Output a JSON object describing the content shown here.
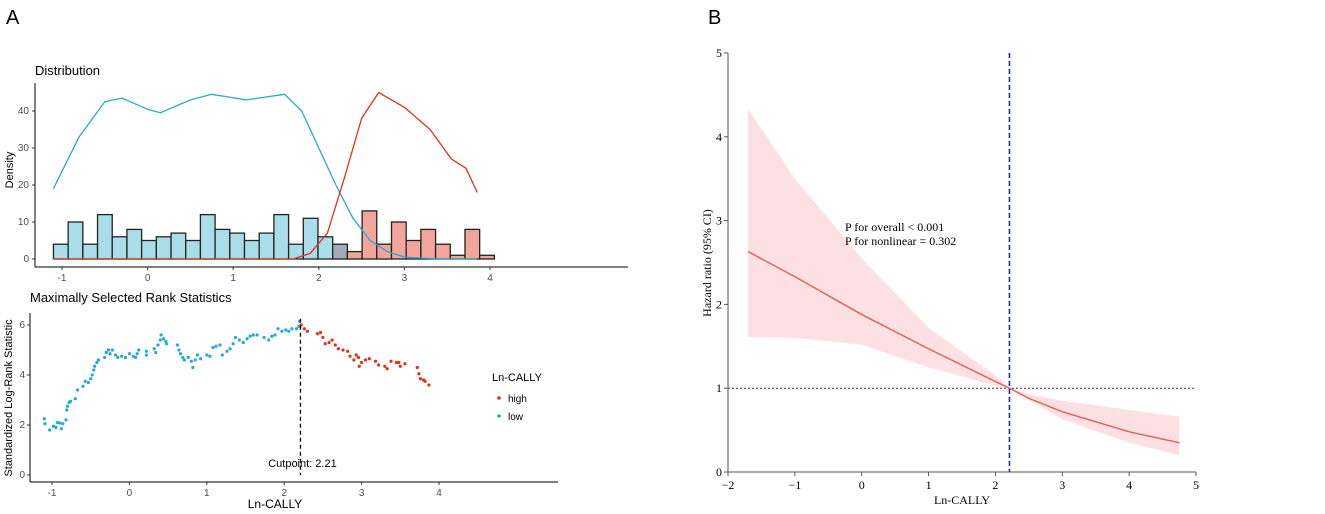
{
  "chart_data": [
    {
      "panel": "A",
      "type": "bar",
      "title": "Distribution",
      "ylabel": "Density",
      "xlabel": "",
      "xlim": [
        -1.1,
        4.05
      ],
      "ylim": [
        0,
        45
      ],
      "xticks": [
        "-1",
        "0",
        "1",
        "2",
        "3",
        "4"
      ],
      "yticks": [
        "0",
        "10",
        "20",
        "30",
        "40"
      ],
      "bin_start": -1.1,
      "bin_width": 0.1717,
      "counts": [
        4,
        10,
        4,
        12,
        6,
        8,
        5,
        6,
        7,
        5,
        12,
        8,
        7,
        5,
        7,
        12,
        4,
        11,
        6,
        4,
        2,
        13,
        4,
        10,
        5,
        8,
        4,
        1,
        8,
        1
      ],
      "bin_groups": [
        "low",
        "low",
        "low",
        "low",
        "low",
        "low",
        "low",
        "low",
        "low",
        "low",
        "low",
        "low",
        "low",
        "low",
        "low",
        "low",
        "low",
        "low",
        "low",
        "overlap",
        "high",
        "high",
        "high",
        "high",
        "high",
        "high",
        "high",
        "high",
        "high",
        "high"
      ],
      "density_series": [
        {
          "name": "low",
          "color": "#29a9cf",
          "x": [
            -1.1,
            -0.8,
            -0.5,
            -0.3,
            0,
            0.15,
            0.5,
            0.75,
            1.15,
            1.6,
            1.8,
            2.0,
            2.2,
            2.4,
            2.6,
            2.8,
            3.0,
            3.4,
            3.85
          ],
          "y": [
            19,
            33,
            42.5,
            43.5,
            40.5,
            39.5,
            43,
            44.5,
            43,
            44.5,
            40,
            30,
            20,
            11,
            5,
            2,
            0.5,
            0,
            0
          ]
        },
        {
          "name": "high",
          "color": "#e0311c",
          "x": [
            -1.1,
            1.7,
            1.9,
            2.1,
            2.3,
            2.5,
            2.7,
            3.0,
            3.3,
            3.55,
            3.72,
            3.85
          ],
          "y": [
            0,
            0,
            1.5,
            7,
            22,
            38,
            45,
            41,
            35,
            27,
            24.5,
            18
          ]
        }
      ]
    },
    {
      "panel": "A",
      "type": "scatter",
      "title": "Maximally Selected Rank Statistics",
      "xlabel": "Ln-CALLY",
      "ylabel": "Standardized Log-Rank Statistic",
      "xlim": [
        -1.3,
        4.2
      ],
      "ylim": [
        0,
        6.2
      ],
      "xticks": [
        "-1",
        "0",
        "1",
        "2",
        "3",
        "4"
      ],
      "yticks": [
        "0",
        "2",
        "4",
        "6"
      ],
      "cutpoint": 2.21,
      "cutpoint_label": "Cutpoint: 2.21",
      "legend": {
        "title": "Ln-CALLY",
        "entries": [
          {
            "label": "high",
            "color": "#e0311c"
          },
          {
            "label": "low",
            "color": "#29a9cf"
          }
        ],
        "placement": "right"
      },
      "series": [
        {
          "name": "low",
          "color": "#29a9cf",
          "points": [
            [
              -1.1,
              2.25
            ],
            [
              -1.09,
              2.05
            ],
            [
              -1.03,
              1.8
            ],
            [
              -0.98,
              1.95
            ],
            [
              -0.95,
              1.9
            ],
            [
              -0.93,
              2.1
            ],
            [
              -0.9,
              2.08
            ],
            [
              -0.88,
              1.85
            ],
            [
              -0.86,
              2.05
            ],
            [
              -0.82,
              2.2
            ],
            [
              -0.81,
              2.6
            ],
            [
              -0.8,
              2.75
            ],
            [
              -0.78,
              2.9
            ],
            [
              -0.76,
              2.95
            ],
            [
              -0.7,
              3.05
            ],
            [
              -0.67,
              3.4
            ],
            [
              -0.6,
              3.55
            ],
            [
              -0.57,
              3.75
            ],
            [
              -0.53,
              3.7
            ],
            [
              -0.5,
              3.85
            ],
            [
              -0.48,
              4.0
            ],
            [
              -0.46,
              4.2
            ],
            [
              -0.45,
              4.35
            ],
            [
              -0.42,
              4.5
            ],
            [
              -0.4,
              4.6
            ],
            [
              -0.32,
              4.7
            ],
            [
              -0.3,
              4.9
            ],
            [
              -0.27,
              5.0
            ],
            [
              -0.25,
              4.85
            ],
            [
              -0.22,
              5.0
            ],
            [
              -0.18,
              4.8
            ],
            [
              -0.15,
              4.7
            ],
            [
              -0.1,
              4.75
            ],
            [
              -0.05,
              4.7
            ],
            [
              0,
              4.85
            ],
            [
              0.05,
              4.75
            ],
            [
              0.08,
              4.7
            ],
            [
              0.1,
              4.85
            ],
            [
              0.12,
              5.0
            ],
            [
              0.22,
              4.8
            ],
            [
              0.22,
              4.95
            ],
            [
              0.32,
              5.05
            ],
            [
              0.34,
              4.9
            ],
            [
              0.37,
              5.2
            ],
            [
              0.4,
              5.4
            ],
            [
              0.41,
              5.6
            ],
            [
              0.44,
              5.45
            ],
            [
              0.47,
              5.35
            ],
            [
              0.48,
              5.25
            ],
            [
              0.62,
              5.2
            ],
            [
              0.64,
              5.0
            ],
            [
              0.66,
              4.85
            ],
            [
              0.69,
              4.7
            ],
            [
              0.71,
              4.6
            ],
            [
              0.76,
              4.7
            ],
            [
              0.8,
              4.55
            ],
            [
              0.82,
              4.3
            ],
            [
              0.85,
              4.6
            ],
            [
              0.88,
              4.8
            ],
            [
              0.92,
              4.65
            ],
            [
              1.0,
              4.8
            ],
            [
              1.04,
              4.75
            ],
            [
              1.08,
              5.1
            ],
            [
              1.12,
              5.15
            ],
            [
              1.17,
              5.2
            ],
            [
              1.2,
              4.8
            ],
            [
              1.26,
              4.95
            ],
            [
              1.3,
              5.05
            ],
            [
              1.34,
              5.25
            ],
            [
              1.37,
              5.5
            ],
            [
              1.42,
              5.4
            ],
            [
              1.47,
              5.3
            ],
            [
              1.52,
              5.45
            ],
            [
              1.56,
              5.55
            ],
            [
              1.6,
              5.6
            ],
            [
              1.65,
              5.6
            ],
            [
              1.74,
              5.5
            ],
            [
              1.8,
              5.4
            ],
            [
              1.84,
              5.55
            ],
            [
              1.88,
              5.6
            ],
            [
              1.92,
              5.85
            ],
            [
              1.97,
              5.75
            ],
            [
              2.02,
              5.8
            ],
            [
              2.06,
              5.75
            ],
            [
              2.1,
              5.85
            ],
            [
              2.16,
              5.85
            ],
            [
              2.19,
              5.95
            ],
            [
              2.2,
              6.15
            ]
          ]
        },
        {
          "name": "high",
          "color": "#e0311c",
          "points": [
            [
              2.22,
              6.0
            ],
            [
              2.26,
              5.85
            ],
            [
              2.3,
              5.75
            ],
            [
              2.43,
              5.65
            ],
            [
              2.47,
              5.7
            ],
            [
              2.5,
              5.5
            ],
            [
              2.53,
              5.25
            ],
            [
              2.58,
              5.3
            ],
            [
              2.62,
              5.4
            ],
            [
              2.66,
              5.2
            ],
            [
              2.7,
              5.05
            ],
            [
              2.76,
              5.0
            ],
            [
              2.82,
              4.95
            ],
            [
              2.85,
              4.75
            ],
            [
              2.9,
              4.6
            ],
            [
              2.93,
              4.8
            ],
            [
              2.96,
              4.7
            ],
            [
              2.97,
              4.35
            ],
            [
              3.0,
              4.5
            ],
            [
              3.05,
              4.6
            ],
            [
              3.1,
              4.65
            ],
            [
              3.18,
              4.55
            ],
            [
              3.22,
              4.4
            ],
            [
              3.3,
              4.35
            ],
            [
              3.33,
              4.25
            ],
            [
              3.38,
              4.55
            ],
            [
              3.45,
              4.5
            ],
            [
              3.48,
              4.5
            ],
            [
              3.5,
              4.35
            ],
            [
              3.56,
              4.45
            ],
            [
              3.72,
              4.3
            ],
            [
              3.74,
              4.05
            ],
            [
              3.76,
              3.85
            ],
            [
              3.8,
              3.8
            ],
            [
              3.82,
              3.75
            ],
            [
              3.87,
              3.6
            ]
          ]
        }
      ]
    },
    {
      "panel": "B",
      "type": "line",
      "title": "",
      "xlabel": "Ln-CALLY",
      "ylabel": "Hazard ratio (95% CI)",
      "xlim": [
        -2,
        5
      ],
      "ylim": [
        0,
        5
      ],
      "xticks": [
        "−2",
        "−1",
        "0",
        "1",
        "2",
        "3",
        "4",
        "5"
      ],
      "yticks": [
        "0",
        "1",
        "2",
        "3",
        "4",
        "5"
      ],
      "reference_hr": 1,
      "cutpoint": 2.21,
      "annotations": [
        "P for overall < 0.001",
        "P for nonlinear = 0.302"
      ],
      "x": [
        -1.7,
        -1,
        0,
        1,
        2,
        2.21,
        2.5,
        3,
        4,
        4.75
      ],
      "series": [
        {
          "name": "HR",
          "color": "#e8524f",
          "values": [
            2.63,
            2.33,
            1.88,
            1.47,
            1.08,
            1.0,
            0.88,
            0.72,
            0.48,
            0.35
          ]
        },
        {
          "name": "upper",
          "values": [
            4.33,
            3.5,
            2.55,
            1.72,
            1.15,
            1.0,
            0.93,
            0.85,
            0.74,
            0.66
          ]
        },
        {
          "name": "lower",
          "values": [
            1.61,
            1.6,
            1.52,
            1.25,
            1.03,
            1.0,
            0.86,
            0.63,
            0.35,
            0.2
          ]
        }
      ]
    }
  ],
  "panel_labels": [
    "A",
    "B"
  ]
}
